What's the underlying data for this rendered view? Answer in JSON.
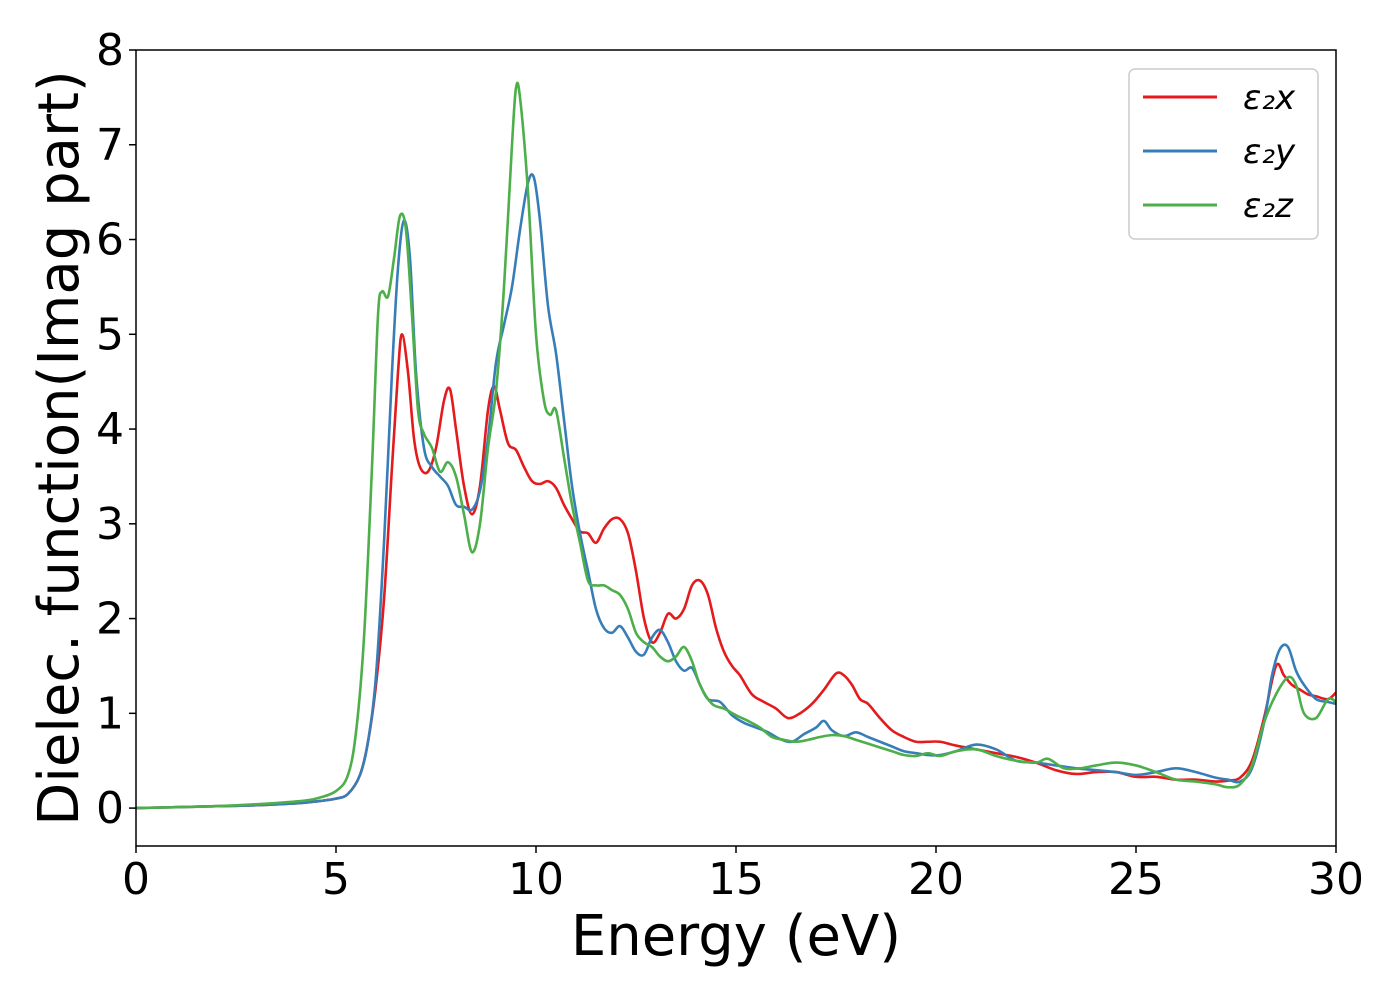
{
  "chart_data": {
    "type": "line",
    "title": "",
    "xlabel": "Energy (eV)",
    "ylabel": "Dielec. function(Imag part)",
    "xlim": [
      0,
      30
    ],
    "ylim": [
      -0.4,
      8
    ],
    "xticks": [
      0,
      5,
      10,
      15,
      20,
      25,
      30
    ],
    "xtick_labels": [
      "0",
      "5",
      "10",
      "15",
      "20",
      "25",
      "30"
    ],
    "yticks": [
      0,
      1,
      2,
      3,
      4,
      5,
      6,
      7,
      8
    ],
    "ytick_labels": [
      "0",
      "1",
      "2",
      "3",
      "4",
      "5",
      "6",
      "7",
      "8"
    ],
    "grid": false,
    "legend_position": "top-right",
    "series": [
      {
        "name": "ε₂x",
        "color": "#e41a1c",
        "x": [
          0,
          1,
          2,
          3,
          4,
          4.5,
          5,
          5.3,
          5.6,
          5.8,
          6.0,
          6.2,
          6.4,
          6.55,
          6.65,
          6.8,
          6.95,
          7.1,
          7.3,
          7.5,
          7.7,
          7.85,
          8.0,
          8.2,
          8.4,
          8.6,
          8.8,
          8.95,
          9.1,
          9.3,
          9.5,
          9.7,
          9.9,
          10.1,
          10.3,
          10.5,
          10.7,
          10.9,
          11.1,
          11.3,
          11.5,
          11.7,
          11.9,
          12.1,
          12.3,
          12.5,
          12.7,
          12.9,
          13.1,
          13.3,
          13.5,
          13.7,
          13.9,
          14.1,
          14.3,
          14.5,
          14.7,
          14.9,
          15.1,
          15.4,
          15.7,
          16.0,
          16.3,
          16.6,
          16.9,
          17.2,
          17.5,
          17.7,
          17.9,
          18.1,
          18.3,
          18.6,
          18.9,
          19.2,
          19.5,
          19.8,
          20.1,
          20.5,
          21.0,
          21.5,
          22.0,
          22.5,
          23.0,
          23.5,
          24.0,
          24.5,
          25.0,
          25.5,
          26.0,
          26.5,
          27.0,
          27.3,
          27.6,
          27.9,
          28.2,
          28.5,
          28.7,
          28.9,
          29.1,
          29.3,
          29.5,
          29.8,
          30.0
        ],
        "y": [
          0,
          0.01,
          0.02,
          0.03,
          0.05,
          0.07,
          0.1,
          0.15,
          0.35,
          0.7,
          1.3,
          2.2,
          3.6,
          4.6,
          5.0,
          4.6,
          3.9,
          3.6,
          3.55,
          3.8,
          4.3,
          4.42,
          4.0,
          3.4,
          3.1,
          3.4,
          4.2,
          4.45,
          4.2,
          3.85,
          3.78,
          3.6,
          3.45,
          3.42,
          3.45,
          3.38,
          3.2,
          3.05,
          2.92,
          2.9,
          2.8,
          2.95,
          3.05,
          3.05,
          2.9,
          2.5,
          2.0,
          1.75,
          1.85,
          2.05,
          2.0,
          2.1,
          2.35,
          2.4,
          2.25,
          1.9,
          1.65,
          1.5,
          1.4,
          1.2,
          1.12,
          1.05,
          0.95,
          1.0,
          1.1,
          1.25,
          1.42,
          1.4,
          1.3,
          1.15,
          1.1,
          0.95,
          0.82,
          0.75,
          0.7,
          0.7,
          0.7,
          0.66,
          0.62,
          0.58,
          0.54,
          0.48,
          0.4,
          0.36,
          0.38,
          0.38,
          0.33,
          0.33,
          0.3,
          0.3,
          0.28,
          0.29,
          0.32,
          0.5,
          0.95,
          1.5,
          1.4,
          1.3,
          1.25,
          1.2,
          1.18,
          1.15,
          1.22
        ]
      },
      {
        "name": "ε₂y",
        "color": "#377eb8",
        "x": [
          0,
          1,
          2,
          3,
          4,
          4.5,
          5,
          5.3,
          5.6,
          5.8,
          6.0,
          6.2,
          6.4,
          6.55,
          6.7,
          6.85,
          7.0,
          7.2,
          7.4,
          7.6,
          7.8,
          8.0,
          8.2,
          8.4,
          8.6,
          8.8,
          9.0,
          9.2,
          9.4,
          9.6,
          9.8,
          9.95,
          10.1,
          10.3,
          10.5,
          10.7,
          10.9,
          11.1,
          11.3,
          11.5,
          11.7,
          11.9,
          12.1,
          12.3,
          12.5,
          12.7,
          12.9,
          13.1,
          13.3,
          13.5,
          13.7,
          13.9,
          14.1,
          14.3,
          14.6,
          14.9,
          15.2,
          15.5,
          15.8,
          16.1,
          16.4,
          16.7,
          17.0,
          17.2,
          17.4,
          17.7,
          18.0,
          18.3,
          18.6,
          18.9,
          19.2,
          19.5,
          19.8,
          20.1,
          20.5,
          21.0,
          21.5,
          22.0,
          22.5,
          23.0,
          23.5,
          24.0,
          24.5,
          25.0,
          25.5,
          26.0,
          26.5,
          27.0,
          27.3,
          27.6,
          27.9,
          28.2,
          28.4,
          28.6,
          28.8,
          29.0,
          29.2,
          29.5,
          29.8,
          30.0
        ],
        "y": [
          0,
          0.01,
          0.02,
          0.03,
          0.05,
          0.07,
          0.1,
          0.15,
          0.35,
          0.7,
          1.4,
          2.8,
          4.6,
          5.7,
          6.2,
          5.8,
          4.6,
          3.8,
          3.6,
          3.5,
          3.4,
          3.2,
          3.18,
          3.15,
          3.35,
          3.9,
          4.7,
          5.1,
          5.5,
          6.1,
          6.6,
          6.65,
          6.2,
          5.3,
          4.8,
          4.1,
          3.4,
          2.9,
          2.5,
          2.1,
          1.9,
          1.85,
          1.92,
          1.8,
          1.65,
          1.62,
          1.8,
          1.88,
          1.75,
          1.55,
          1.45,
          1.48,
          1.3,
          1.15,
          1.12,
          0.98,
          0.9,
          0.85,
          0.8,
          0.73,
          0.7,
          0.78,
          0.85,
          0.92,
          0.82,
          0.76,
          0.8,
          0.75,
          0.7,
          0.65,
          0.6,
          0.58,
          0.56,
          0.56,
          0.6,
          0.67,
          0.62,
          0.5,
          0.48,
          0.45,
          0.42,
          0.4,
          0.38,
          0.35,
          0.38,
          0.42,
          0.38,
          0.32,
          0.3,
          0.28,
          0.42,
          0.9,
          1.4,
          1.68,
          1.7,
          1.45,
          1.3,
          1.15,
          1.12,
          1.1
        ]
      },
      {
        "name": "ε₂z",
        "color": "#4daf4a",
        "x": [
          0,
          1,
          2,
          3,
          4,
          4.5,
          5,
          5.3,
          5.5,
          5.7,
          5.9,
          6.05,
          6.15,
          6.3,
          6.45,
          6.6,
          6.75,
          6.9,
          7.05,
          7.2,
          7.4,
          7.6,
          7.8,
          8.0,
          8.2,
          8.4,
          8.6,
          8.8,
          9.0,
          9.2,
          9.4,
          9.5,
          9.6,
          9.8,
          10.0,
          10.2,
          10.35,
          10.5,
          10.7,
          10.9,
          11.1,
          11.3,
          11.5,
          11.7,
          11.9,
          12.1,
          12.3,
          12.5,
          12.7,
          12.9,
          13.1,
          13.3,
          13.5,
          13.7,
          13.9,
          14.1,
          14.4,
          14.7,
          15.0,
          15.3,
          15.6,
          15.9,
          16.2,
          16.5,
          16.8,
          17.1,
          17.4,
          17.7,
          18.0,
          18.3,
          18.6,
          18.9,
          19.2,
          19.5,
          19.8,
          20.1,
          20.5,
          21.0,
          21.5,
          22.0,
          22.5,
          22.8,
          23.2,
          23.6,
          24.0,
          24.5,
          25.0,
          25.5,
          26.0,
          26.5,
          27.0,
          27.3,
          27.6,
          27.9,
          28.2,
          28.5,
          28.8,
          29.0,
          29.2,
          29.5,
          29.8,
          30.0
        ],
        "y": [
          0,
          0.01,
          0.02,
          0.04,
          0.07,
          0.1,
          0.18,
          0.35,
          0.8,
          1.8,
          3.6,
          5.2,
          5.45,
          5.4,
          5.8,
          6.25,
          6.1,
          5.2,
          4.2,
          3.95,
          3.8,
          3.55,
          3.65,
          3.5,
          3.1,
          2.7,
          3.0,
          3.8,
          4.4,
          5.5,
          7.0,
          7.6,
          7.5,
          6.5,
          5.0,
          4.3,
          4.15,
          4.2,
          3.7,
          3.2,
          2.8,
          2.4,
          2.35,
          2.35,
          2.3,
          2.25,
          2.1,
          1.85,
          1.75,
          1.7,
          1.6,
          1.55,
          1.6,
          1.7,
          1.55,
          1.3,
          1.1,
          1.05,
          0.98,
          0.92,
          0.85,
          0.75,
          0.72,
          0.7,
          0.72,
          0.75,
          0.77,
          0.76,
          0.72,
          0.68,
          0.64,
          0.6,
          0.56,
          0.55,
          0.58,
          0.55,
          0.6,
          0.62,
          0.55,
          0.5,
          0.48,
          0.52,
          0.42,
          0.42,
          0.45,
          0.48,
          0.45,
          0.38,
          0.3,
          0.28,
          0.25,
          0.22,
          0.25,
          0.45,
          0.9,
          1.2,
          1.38,
          1.3,
          1.0,
          0.95,
          1.15,
          1.12
        ]
      }
    ]
  }
}
